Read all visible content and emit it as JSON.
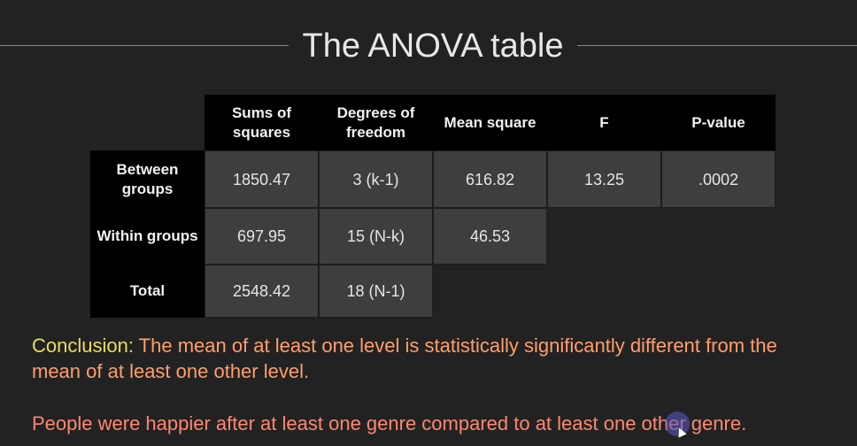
{
  "slide": {
    "title": "The ANOVA table"
  },
  "table": {
    "columns": [
      "Sums of squares",
      "Degrees of freedom",
      "Mean square",
      "F",
      "P-value"
    ],
    "rows": [
      {
        "label": "Between groups",
        "ss": "1850.47",
        "df": "3 (k-1)",
        "ms": "616.82",
        "f": "13.25",
        "p": ".0002"
      },
      {
        "label": "Within groups",
        "ss": "697.95",
        "df": "15 (N-k)",
        "ms": "46.53"
      },
      {
        "label": "Total",
        "ss": "2548.42",
        "df": "18 (N-1)"
      }
    ]
  },
  "conclusion": {
    "lead": "Conclusion:",
    "text": " The mean of at least one level is statistically significantly different from the mean of at least one other level.",
    "people": "People were happier after at least one genre compared to at least one other genre."
  },
  "colors": {
    "background": "#222222",
    "header_bg": "#000000",
    "cell_bg": "#3e3e40",
    "conclusion_lead": "#e8dc63",
    "conclusion_text": "#ff9e6e",
    "people_text": "#ff8870"
  }
}
